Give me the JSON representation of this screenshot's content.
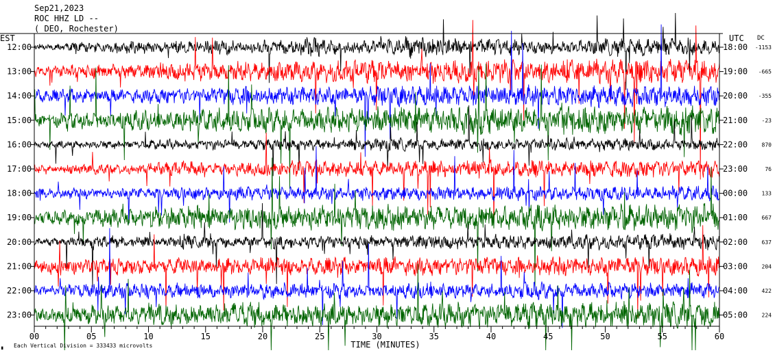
{
  "header": {
    "line1": "Sep21,2023",
    "line2": "ROC HHZ LD --",
    "line3": "( DEO, Rochester)"
  },
  "left_axis_title": "EST",
  "right_axis_title": "UTC",
  "dc_title": "DC",
  "footer_note": "Each Vertical Division = 333433 microvolts",
  "corner_mark": "∎",
  "colors": {
    "black": "#000000",
    "red": "#ff0000",
    "blue": "#0000ff",
    "green": "#006400",
    "grid": "#000000"
  },
  "chart_data": {
    "type": "line",
    "xlabel": "TIME (MINUTES)",
    "xlim": [
      0,
      60
    ],
    "x_ticks": [
      "00",
      "05",
      "10",
      "15",
      "20",
      "25",
      "30",
      "35",
      "40",
      "45",
      "50",
      "55",
      "60"
    ],
    "series_color_cycle": [
      "black",
      "red",
      "blue",
      "green"
    ],
    "rows": [
      {
        "est": "12:00",
        "utc": "18:00",
        "dc": "-1153"
      },
      {
        "est": "13:00",
        "utc": "19:00",
        "dc": "-665"
      },
      {
        "est": "14:00",
        "utc": "20:00",
        "dc": "-355"
      },
      {
        "est": "15:00",
        "utc": "21:00",
        "dc": "-23"
      },
      {
        "est": "16:00",
        "utc": "22:00",
        "dc": "870"
      },
      {
        "est": "17:00",
        "utc": "23:00",
        "dc": "76"
      },
      {
        "est": "18:00",
        "utc": "00:00",
        "dc": "133"
      },
      {
        "est": "19:00",
        "utc": "01:00",
        "dc": "667"
      },
      {
        "est": "20:00",
        "utc": "02:00",
        "dc": "637"
      },
      {
        "est": "21:00",
        "utc": "03:00",
        "dc": "204"
      },
      {
        "est": "22:00",
        "utc": "04:00",
        "dc": "422"
      },
      {
        "est": "23:00",
        "utc": "05:00",
        "dc": "224"
      }
    ],
    "activity": [
      [
        0.6,
        0.9,
        1.0,
        1.2,
        0.9,
        1.1,
        1.4,
        1.0,
        1.3,
        1.8,
        1.5,
        1.2,
        1.6,
        2.0,
        1.8,
        1.6,
        1.5,
        1.3,
        1.2,
        1.4,
        1.6,
        1.7,
        1.8,
        1.5
      ],
      [
        1.0,
        1.3,
        1.5,
        1.4,
        1.6,
        1.8,
        1.7,
        2.0,
        1.8,
        1.9,
        2.1,
        2.2,
        2.0,
        2.3,
        2.1,
        2.0,
        2.2,
        2.0,
        2.3,
        2.4,
        2.2,
        2.5,
        2.3,
        2.4
      ],
      [
        1.2,
        1.4,
        1.2,
        1.3,
        1.5,
        1.4,
        1.6,
        1.8,
        1.6,
        1.9,
        1.7,
        1.8,
        2.0,
        1.9,
        1.8,
        2.0,
        1.9,
        2.1,
        2.0,
        2.2,
        2.0,
        1.9,
        2.1,
        2.0
      ],
      [
        1.3,
        1.6,
        1.5,
        1.9,
        1.7,
        2.0,
        2.2,
        2.1,
        2.3,
        2.0,
        2.4,
        2.2,
        2.5,
        2.3,
        2.4,
        2.6,
        2.5,
        2.3,
        2.6,
        2.8,
        2.5,
        2.7,
        2.9,
        2.7
      ],
      [
        0.6,
        0.7,
        0.8,
        0.7,
        0.9,
        0.8,
        1.0,
        0.9,
        1.1,
        1.0,
        1.0,
        1.1,
        1.2,
        1.0,
        1.1,
        1.2,
        1.1,
        1.0,
        1.2,
        1.1,
        1.2,
        1.1,
        1.0,
        1.2
      ],
      [
        0.8,
        0.9,
        1.0,
        0.9,
        1.2,
        1.5,
        1.0,
        1.3,
        1.2,
        1.6,
        1.4,
        1.5,
        1.3,
        1.6,
        1.5,
        1.7,
        1.5,
        1.6,
        1.4,
        1.5,
        1.6,
        1.7,
        1.5,
        1.6
      ],
      [
        0.9,
        1.0,
        0.9,
        1.1,
        1.0,
        1.2,
        1.1,
        1.3,
        1.2,
        1.1,
        1.3,
        1.2,
        1.4,
        1.2,
        1.3,
        1.2,
        1.4,
        1.3,
        1.2,
        1.4,
        1.3,
        1.2,
        1.3,
        1.4
      ],
      [
        1.2,
        1.5,
        1.8,
        1.6,
        2.0,
        2.2,
        1.9,
        2.3,
        2.1,
        2.0,
        2.4,
        2.2,
        2.5,
        2.3,
        2.1,
        2.4,
        2.2,
        2.5,
        2.3,
        2.4,
        2.6,
        2.4,
        2.5,
        2.7
      ],
      [
        0.7,
        0.9,
        1.2,
        1.1,
        0.9,
        1.3,
        1.2,
        1.0,
        1.4,
        1.2,
        1.1,
        1.3,
        1.2,
        1.4,
        1.3,
        1.2,
        1.4,
        1.3,
        1.2,
        1.5,
        1.3,
        1.4,
        1.6,
        1.5
      ],
      [
        1.2,
        1.4,
        1.6,
        1.5,
        1.3,
        1.7,
        1.5,
        1.6,
        1.8,
        1.5,
        1.7,
        1.6,
        1.8,
        1.7,
        1.6,
        1.9,
        1.7,
        1.6,
        1.8,
        1.7,
        1.9,
        1.8,
        1.7,
        1.9
      ],
      [
        1.0,
        1.2,
        1.4,
        1.6,
        1.3,
        1.5,
        1.4,
        1.2,
        1.5,
        1.3,
        1.4,
        1.2,
        1.3,
        1.5,
        1.4,
        1.2,
        1.3,
        1.6,
        1.4,
        1.3,
        1.5,
        1.4,
        1.3,
        1.5
      ],
      [
        1.3,
        1.6,
        1.9,
        1.7,
        2.0,
        1.8,
        2.2,
        2.4,
        2.0,
        2.3,
        2.1,
        2.0,
        2.3,
        2.1,
        2.4,
        2.2,
        2.3,
        2.5,
        2.2,
        2.4,
        2.6,
        2.3,
        2.5,
        2.7
      ]
    ]
  }
}
